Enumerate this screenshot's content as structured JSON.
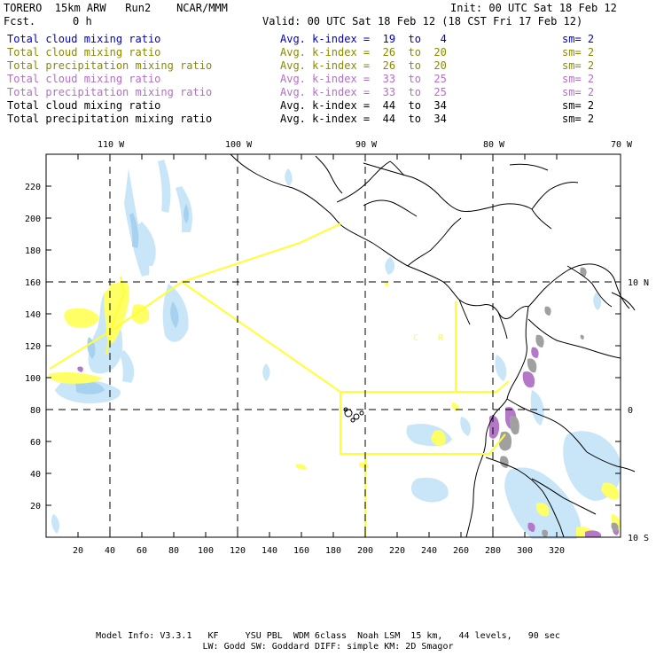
{
  "header": {
    "model": "TORERO  15km ARW   Run2    NCAR/MMM",
    "fcst_label": "Fcst.",
    "fcst_value": "0 h",
    "init": "Init: 00 UTC Sat 18 Feb 12",
    "valid": "Valid: 00 UTC Sat 18 Feb 12 (18 CST Fri 17 Feb 12)"
  },
  "legend": [
    {
      "field": "Total cloud mixing ratio",
      "kindex": "Avg. k-index =  19  to   4",
      "sm": "sm= 2",
      "color": "#0000c8"
    },
    {
      "field": "Total cloud mixing ratio",
      "kindex": "Avg. k-index =  26  to  20",
      "sm": "sm= 2",
      "color": "#8a8a00"
    },
    {
      "field": "Total precipitation mixing ratio",
      "kindex": "Avg. k-index =  26  to  20",
      "sm": "sm= 2",
      "color": "#8a8a00"
    },
    {
      "field": "Total cloud mixing ratio",
      "kindex": "Avg. k-index =  33  to  25",
      "sm": "sm= 2",
      "color": "#b46ec8"
    },
    {
      "field": "Total precipitation mixing ratio",
      "kindex": "Avg. k-index =  33  to  25",
      "sm": "sm= 2",
      "color": "#b46ec8"
    },
    {
      "field": "Total cloud mixing ratio",
      "kindex": "Avg. k-index =  44  to  34",
      "sm": "sm= 2",
      "color": "#000000"
    },
    {
      "field": "Total precipitation mixing ratio",
      "kindex": "Avg. k-index =  44  to  34",
      "sm": "sm= 2",
      "color": "#000000"
    }
  ],
  "map": {
    "top_labels": [
      "110 W",
      "100 W",
      "90 W",
      "80 W",
      "70 W"
    ],
    "right_labels": [
      "10 N",
      "0",
      "10 S"
    ],
    "x_ticks": [
      "20",
      "40",
      "60",
      "80",
      "100",
      "120",
      "140",
      "160",
      "180",
      "200",
      "220",
      "240",
      "260",
      "280",
      "300",
      "320"
    ],
    "y_ticks": [
      "20",
      "40",
      "60",
      "80",
      "100",
      "120",
      "140",
      "160",
      "180",
      "200",
      "220"
    ],
    "region_labels": [
      "C",
      "R"
    ],
    "colors": {
      "cloud": "#c8e6f8",
      "cloud_dark": "#a6d2f0",
      "precip": "#ffff66",
      "purple": "#b478c8",
      "gray": "#a0a0a0",
      "domain_line": "#ffff33"
    }
  },
  "footer": {
    "line1": "Model Info: V3.3.1   KF     YSU PBL  WDM 6class  Noah LSM  15 km,   44 levels,   90 sec",
    "line2": "LW: Godd SW: Goddard DIFF: simple KM: 2D Smagor"
  }
}
